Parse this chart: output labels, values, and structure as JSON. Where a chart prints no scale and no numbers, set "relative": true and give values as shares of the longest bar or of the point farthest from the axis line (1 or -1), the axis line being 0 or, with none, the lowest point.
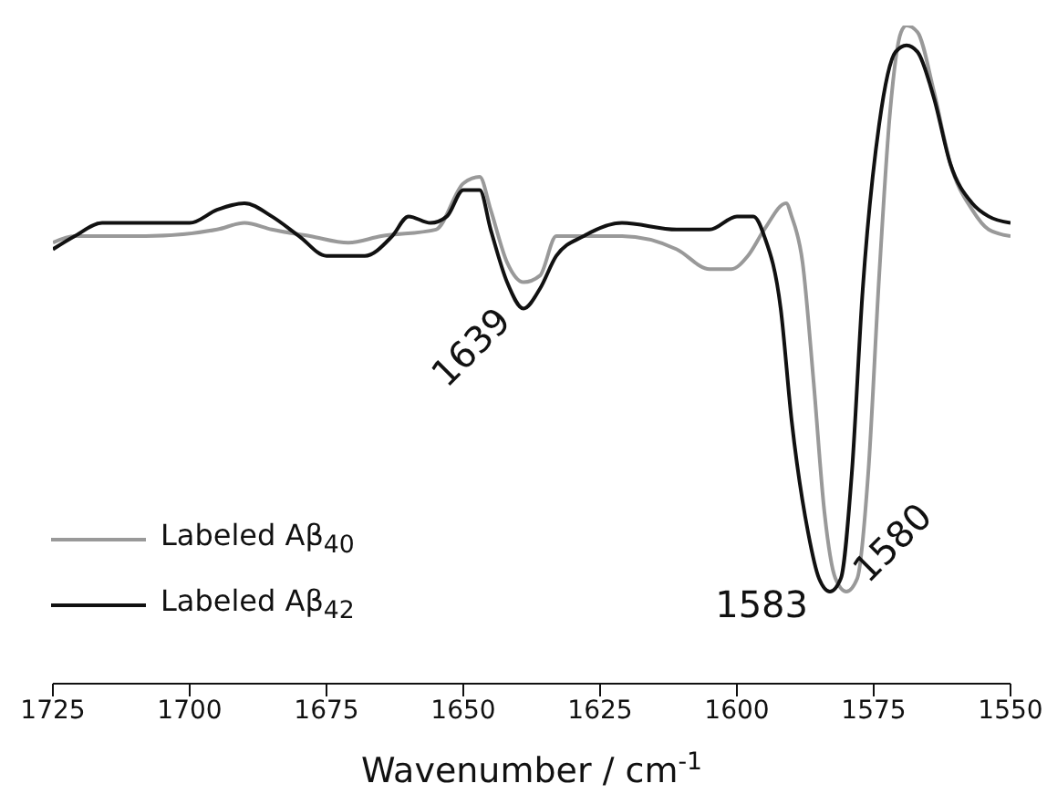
{
  "chart_data": {
    "type": "line",
    "relative": true,
    "xlabel": "Wavenumber / cm$^{-1}$",
    "xlim": [
      1725,
      1550
    ],
    "xticks": [
      1725,
      1700,
      1675,
      1650,
      1625,
      1600,
      1575,
      1550
    ],
    "legend": "bottom left",
    "marker": "none",
    "line_style": "solid",
    "series": [
      {
        "name": "Labeled Aβ$_{40}$",
        "color": "#999999",
        "x": [
          1725,
          1721,
          1708,
          1695,
          1690,
          1685,
          1678,
          1671,
          1665,
          1655,
          1650,
          1647,
          1645,
          1642,
          1639,
          1636,
          1633,
          1628,
          1621,
          1611,
          1605,
          1601,
          1598,
          1595,
          1591,
          1590,
          1588,
          1586,
          1584,
          1582,
          1580,
          1578,
          1576,
          1574,
          1572,
          1570,
          1569,
          1567,
          1564,
          1561,
          1557,
          1554,
          1550
        ],
        "values": [
          0.67,
          0.68,
          0.68,
          0.69,
          0.7,
          0.69,
          0.68,
          0.67,
          0.68,
          0.69,
          0.76,
          0.77,
          0.72,
          0.64,
          0.61,
          0.62,
          0.68,
          0.68,
          0.68,
          0.66,
          0.63,
          0.63,
          0.65,
          0.69,
          0.73,
          0.71,
          0.64,
          0.46,
          0.26,
          0.16,
          0.14,
          0.16,
          0.32,
          0.62,
          0.87,
          0.99,
          1,
          0.99,
          0.9,
          0.79,
          0.72,
          0.69,
          0.68
        ]
      },
      {
        "name": "Labeled Aβ$_{42}$",
        "color": "#111111",
        "x": [
          1725,
          1721,
          1716,
          1708,
          1700,
          1695,
          1690,
          1685,
          1680,
          1675,
          1671,
          1668,
          1663,
          1660,
          1656,
          1653,
          1650,
          1647,
          1645,
          1642,
          1639,
          1636,
          1633,
          1628,
          1621,
          1611,
          1605,
          1600,
          1597,
          1595,
          1592,
          1590,
          1587,
          1585,
          1583,
          1581,
          1579,
          1577,
          1574,
          1571,
          1569,
          1567,
          1564,
          1561,
          1557,
          1554,
          1550
        ],
        "values": [
          0.66,
          0.68,
          0.7,
          0.7,
          0.7,
          0.72,
          0.73,
          0.71,
          0.68,
          0.65,
          0.65,
          0.65,
          0.68,
          0.71,
          0.7,
          0.71,
          0.75,
          0.75,
          0.69,
          0.61,
          0.57,
          0.6,
          0.65,
          0.68,
          0.7,
          0.69,
          0.69,
          0.71,
          0.71,
          0.68,
          0.57,
          0.4,
          0.23,
          0.16,
          0.14,
          0.16,
          0.32,
          0.6,
          0.85,
          0.96,
          0.97,
          0.96,
          0.89,
          0.79,
          0.73,
          0.71,
          0.7
        ]
      }
    ],
    "annotations": [
      {
        "text": "1639",
        "x": 1639,
        "y": 0.57
      },
      {
        "text": "1583",
        "x": 1583,
        "y": 0.14
      },
      {
        "text": "1580",
        "x": 1580,
        "y": 0.14
      }
    ]
  }
}
